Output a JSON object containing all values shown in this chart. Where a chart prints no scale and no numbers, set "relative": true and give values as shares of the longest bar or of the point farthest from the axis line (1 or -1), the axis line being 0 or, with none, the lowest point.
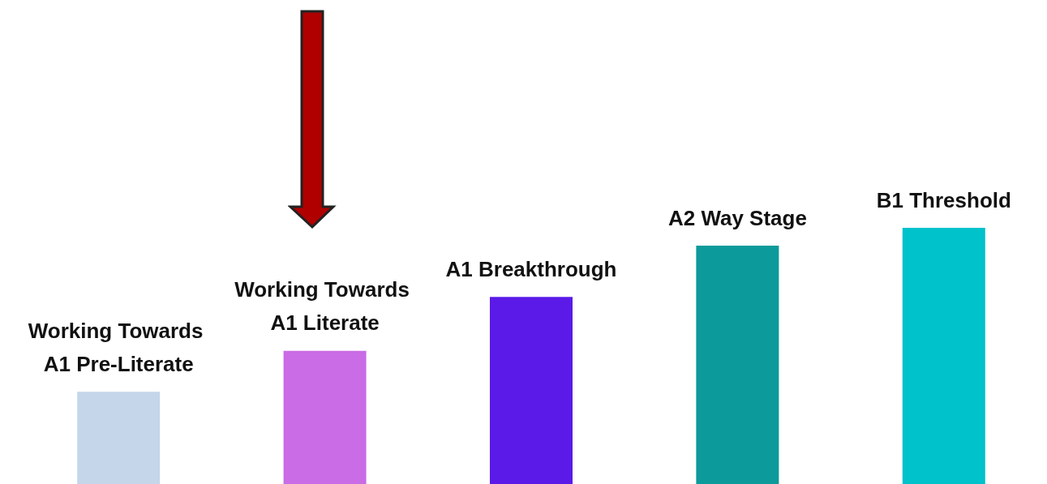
{
  "chart_data": {
    "type": "bar",
    "relative": true,
    "categories": [
      "Working Towards A1 Pre-Literate",
      "Working Towards A1 Literate",
      "A1 Breakthrough",
      "A2 Way Stage",
      "B1 Threshold"
    ],
    "values": [
      0.36,
      0.52,
      0.73,
      0.93,
      1
    ],
    "colors": [
      "#c5d5ea",
      "#c96ce6",
      "#5b1ae8",
      "#0d9a9a",
      "#00c2cb"
    ]
  }
}
